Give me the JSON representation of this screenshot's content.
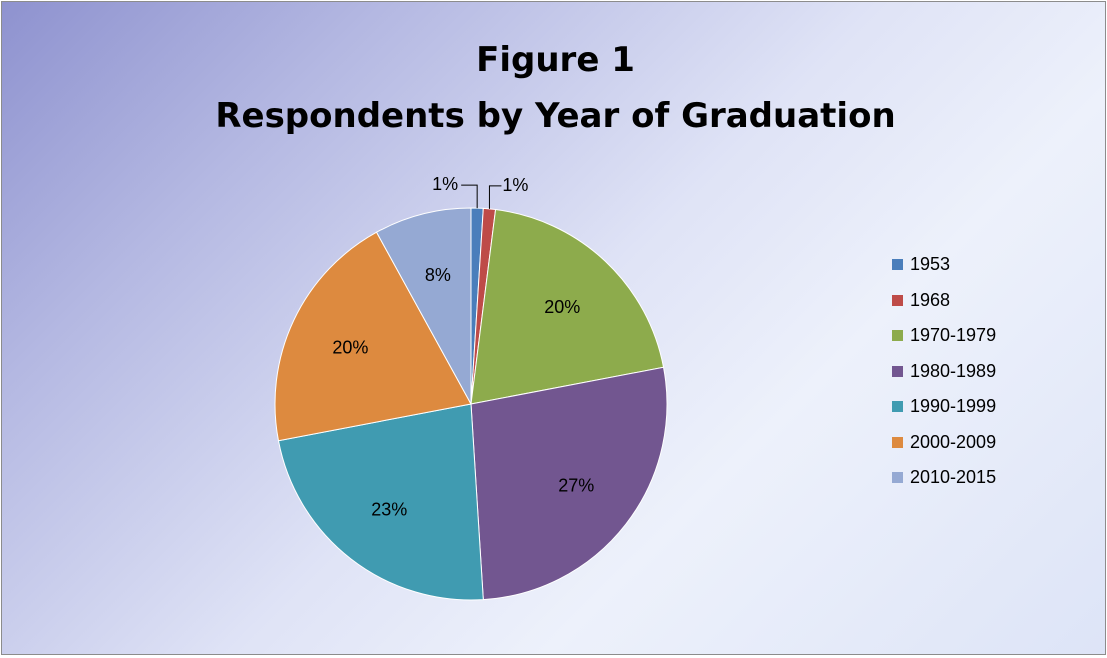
{
  "chart_data": {
    "type": "pie",
    "title": "Figure 1",
    "subtitle": "Respondents by Year of Graduation",
    "categories": [
      "1953",
      "1968",
      "1970-1979",
      "1980-1989",
      "1990-1999",
      "2000-2009",
      "2010-2015"
    ],
    "values": [
      1,
      1,
      20,
      27,
      23,
      20,
      8
    ],
    "data_labels": [
      "1%",
      "1%",
      "20%",
      "27%",
      "23%",
      "20%",
      "8%"
    ],
    "colors": [
      "#4a7ebb",
      "#be4b48",
      "#8dab4c",
      "#725690",
      "#409bb1",
      "#dd8a3f",
      "#95a9d3"
    ],
    "legend_position": "right"
  }
}
